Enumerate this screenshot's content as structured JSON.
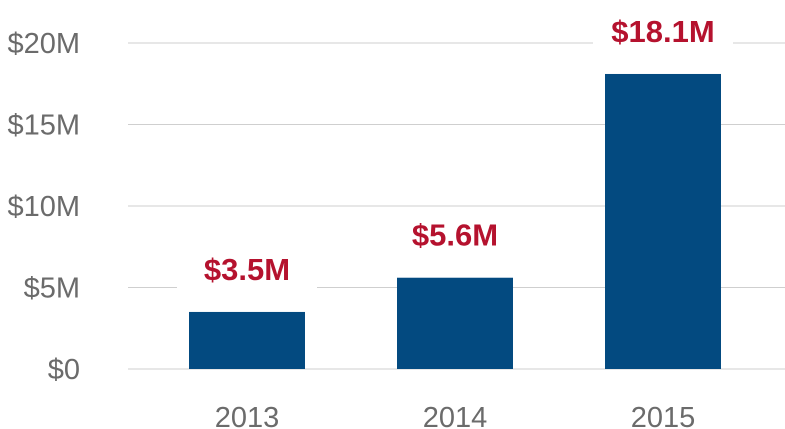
{
  "chart_data": {
    "type": "bar",
    "categories": [
      "2013",
      "2014",
      "2015"
    ],
    "values": [
      3.5,
      5.6,
      18.1
    ],
    "data_labels": [
      "$3.5M",
      "$5.6M",
      "$18.1M"
    ],
    "y_ticks": [
      0,
      5,
      10,
      15,
      20
    ],
    "y_tick_labels": [
      "$0",
      "$5M",
      "$10M",
      "$15M",
      "$20M"
    ],
    "ylim": [
      0,
      20
    ],
    "grid": true,
    "title": "",
    "xlabel": "",
    "ylabel": "",
    "colors": {
      "bar": "#034a80",
      "label": "#b5122e",
      "grid": "#cfcfcf",
      "tick": "#6b6b6b"
    }
  }
}
